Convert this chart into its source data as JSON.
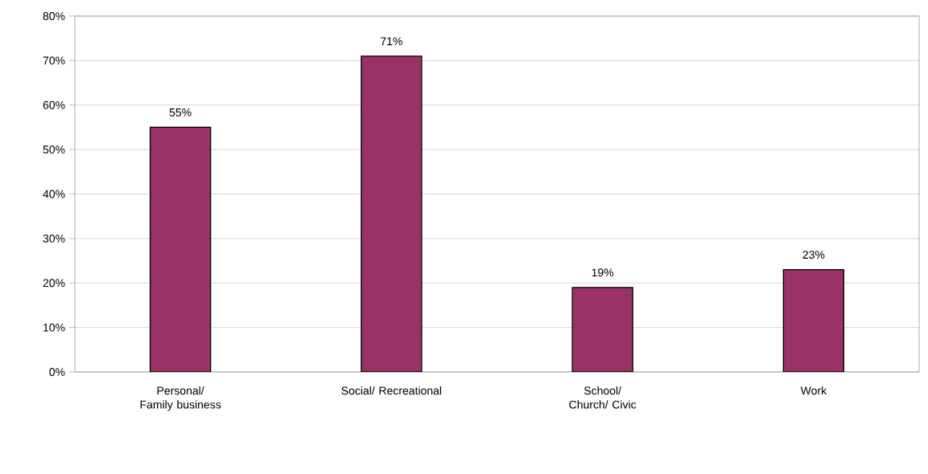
{
  "chart_data": {
    "type": "bar",
    "categories": [
      "Personal/ Family business",
      "Social/ Recreational",
      "School/ Church/ Civic",
      "Work"
    ],
    "values": [
      55,
      71,
      19,
      23
    ],
    "value_labels": [
      "55%",
      "71%",
      "19%",
      "23%"
    ],
    "color": "#993366",
    "ylim": [
      0,
      80
    ],
    "yticks": [
      {
        "value": 0,
        "label": "0%"
      },
      {
        "value": 10,
        "label": "10%"
      },
      {
        "value": 20,
        "label": "20%"
      },
      {
        "value": 30,
        "label": "30%"
      },
      {
        "value": 40,
        "label": "40%"
      },
      {
        "value": 50,
        "label": "50%"
      },
      {
        "value": 60,
        "label": "60%"
      },
      {
        "value": 70,
        "label": "70%"
      },
      {
        "value": 80,
        "label": "80%"
      }
    ],
    "grid": "y"
  }
}
